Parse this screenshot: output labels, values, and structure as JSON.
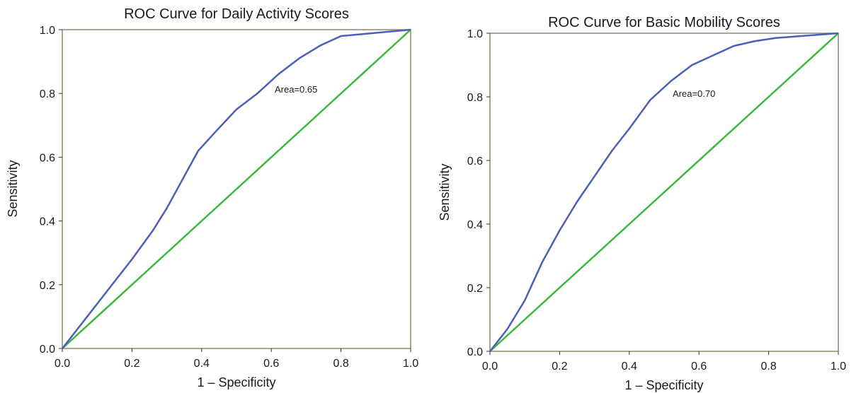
{
  "chart_data": [
    {
      "type": "line",
      "title": "ROC Curve for Daily Activity Scores",
      "xlabel": "1 – Specificity",
      "ylabel": "Sensitivity",
      "xlim": [
        0,
        1
      ],
      "ylim": [
        0,
        1
      ],
      "xticks": [
        "0.0",
        "0.2",
        "0.4",
        "0.6",
        "0.8",
        "1.0"
      ],
      "yticks": [
        "0.0",
        "0.2",
        "0.4",
        "0.6",
        "0.8",
        "1.0"
      ],
      "grid": false,
      "annotation": "Area=0.65",
      "series": [
        {
          "color": "#4a5fb5",
          "x": [
            0.0,
            0.05,
            0.1,
            0.15,
            0.2,
            0.26,
            0.3,
            0.34,
            0.39,
            0.44,
            0.5,
            0.56,
            0.62,
            0.68,
            0.74,
            0.8,
            0.85,
            0.9,
            0.95,
            1.0
          ],
          "y": [
            0.0,
            0.07,
            0.14,
            0.21,
            0.28,
            0.37,
            0.44,
            0.52,
            0.62,
            0.68,
            0.75,
            0.8,
            0.86,
            0.91,
            0.95,
            0.98,
            0.985,
            0.99,
            0.995,
            1.0
          ]
        },
        {
          "color": "#3cb83c",
          "x": [
            0.0,
            1.0
          ],
          "y": [
            0.0,
            1.0
          ]
        }
      ]
    },
    {
      "type": "line",
      "title": "ROC Curve for Basic Mobility Scores",
      "xlabel": "1 – Specificity",
      "ylabel": "Sensitivity",
      "xlim": [
        0,
        1
      ],
      "ylim": [
        0,
        1
      ],
      "xticks": [
        "0.0",
        "0.2",
        "0.4",
        "0.6",
        "0.8",
        "1.0"
      ],
      "yticks": [
        "0.0",
        "0.2",
        "0.4",
        "0.6",
        "0.8",
        "1.0"
      ],
      "grid": false,
      "annotation": "Area=0.70",
      "series": [
        {
          "color": "#4a5fb5",
          "x": [
            0.0,
            0.05,
            0.1,
            0.15,
            0.2,
            0.25,
            0.3,
            0.35,
            0.4,
            0.46,
            0.52,
            0.58,
            0.64,
            0.7,
            0.76,
            0.82,
            0.88,
            0.94,
            1.0
          ],
          "y": [
            0.0,
            0.07,
            0.16,
            0.28,
            0.38,
            0.47,
            0.55,
            0.63,
            0.7,
            0.79,
            0.85,
            0.9,
            0.93,
            0.96,
            0.975,
            0.985,
            0.99,
            0.995,
            1.0
          ]
        },
        {
          "color": "#3cb83c",
          "x": [
            0.0,
            1.0
          ],
          "y": [
            0.0,
            1.0
          ]
        }
      ]
    }
  ]
}
